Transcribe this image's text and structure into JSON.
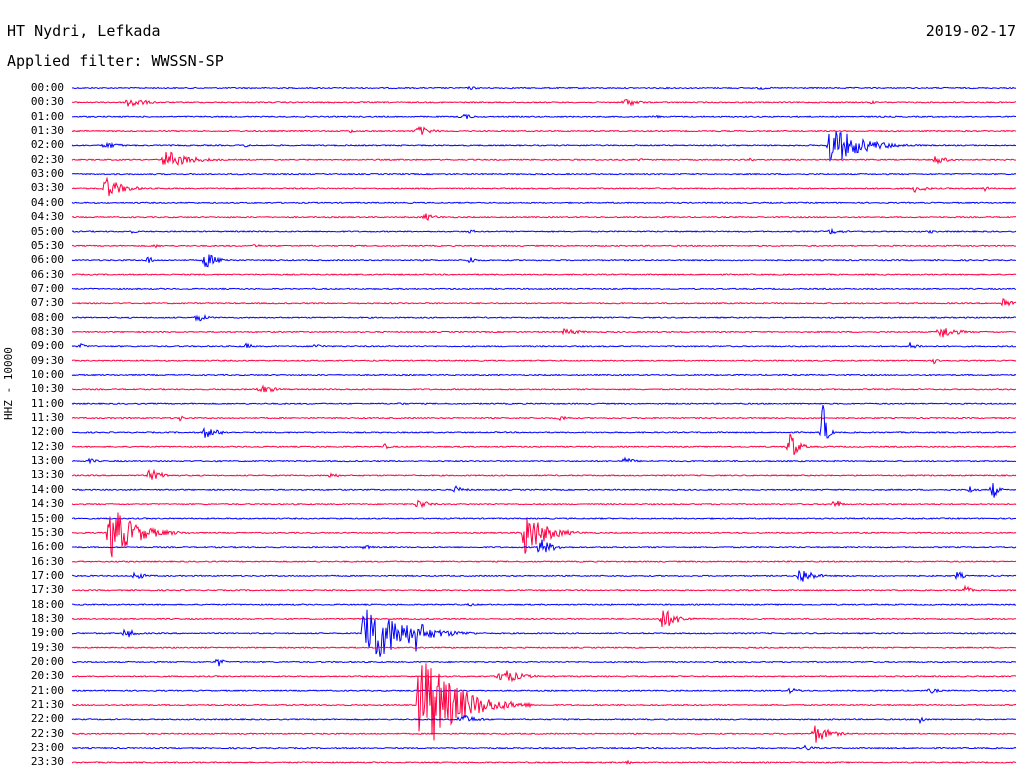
{
  "header": {
    "station": "HT Nydri, Lefkada",
    "date": "2019-02-17",
    "filter": "Applied filter: WWSSN-SP"
  },
  "axis": {
    "channel_label": "HHZ - 10000"
  },
  "colors": {
    "blue": "#0000ff",
    "red": "#ff0040",
    "background": "#ffffff"
  },
  "time_labels": [
    "00:00",
    "00:30",
    "01:00",
    "01:30",
    "02:00",
    "02:30",
    "03:00",
    "03:30",
    "04:00",
    "04:30",
    "05:00",
    "05:30",
    "06:00",
    "06:30",
    "07:00",
    "07:30",
    "08:00",
    "08:30",
    "09:00",
    "09:30",
    "10:00",
    "10:30",
    "11:00",
    "11:30",
    "12:00",
    "12:30",
    "13:00",
    "13:30",
    "14:00",
    "14:30",
    "15:00",
    "15:30",
    "16:00",
    "16:30",
    "17:00",
    "17:30",
    "18:00",
    "18:30",
    "19:00",
    "19:30",
    "20:00",
    "20:30",
    "21:00",
    "21:30",
    "22:00",
    "22:30",
    "23:00",
    "23:30"
  ]
}
